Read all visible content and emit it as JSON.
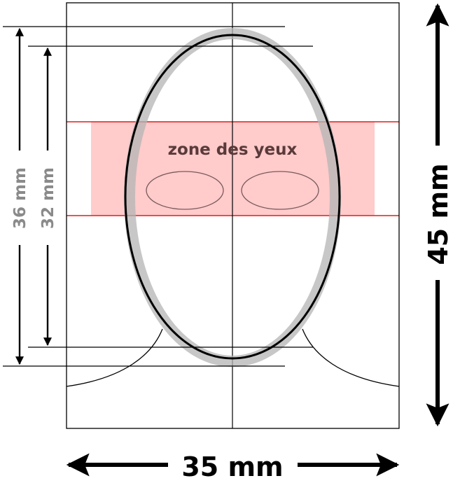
{
  "diagram": {
    "eye_zone_label": "zone des yeux",
    "dim_width": "35 mm",
    "dim_height": "45 mm",
    "dim_outer_face": "36 mm",
    "dim_inner_face": "32 mm"
  },
  "colors": {
    "eye_zone_fill": "#ffc8c8",
    "eye_zone_line": "#e31b1b",
    "face_band": "#b4b4b4",
    "dim_gray": "#8a8a8a",
    "ink": "#000000",
    "eye_outline": "#7a5a5a",
    "label_text": "#5a3a3a"
  }
}
